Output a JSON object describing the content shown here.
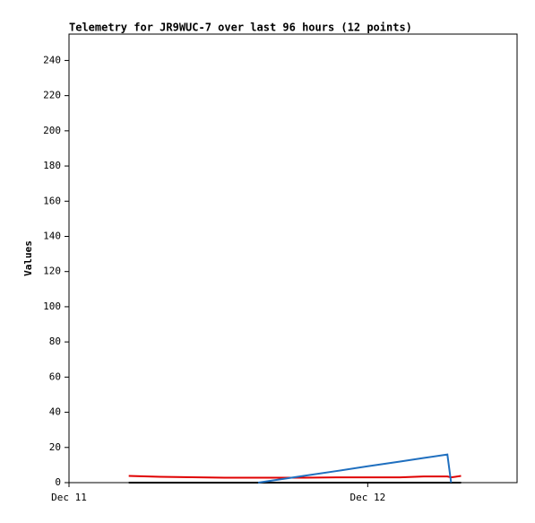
{
  "chart_data": {
    "type": "line",
    "title": "Telemetry for JR9WUC-7 over last 96 hours (12 points)",
    "y_label": "Values",
    "x": [
      4.8,
      7.3,
      12.5,
      15.2,
      18.9,
      21.5,
      24.0,
      26.6,
      28.5,
      30.4,
      30.7,
      31.5
    ],
    "xlim": [
      0,
      36
    ],
    "xticks": [
      {
        "value": 0,
        "label": "Dec 11"
      },
      {
        "value": 24,
        "label": "Dec 12"
      }
    ],
    "ylim": [
      0,
      255
    ],
    "yticks": [
      0,
      20,
      40,
      60,
      80,
      100,
      120,
      140,
      160,
      180,
      200,
      220,
      240
    ],
    "series": [
      {
        "color": "#000000",
        "values": [
          0,
          0,
          0,
          0,
          0,
          0,
          0,
          0,
          0,
          0,
          0,
          0
        ]
      },
      {
        "color": "#e00000",
        "values": [
          3.8,
          3.3,
          2.8,
          2.8,
          2.8,
          3,
          3,
          3,
          3.5,
          3.5,
          3,
          3.8
        ]
      },
      {
        "color": "#1f6fbf",
        "values": [
          null,
          null,
          null,
          0,
          3.9,
          6.6,
          9.3,
          12,
          14,
          16,
          0,
          null
        ]
      }
    ]
  }
}
